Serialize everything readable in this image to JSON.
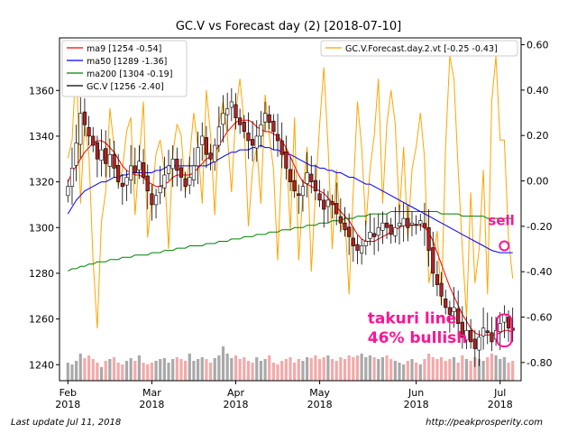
{
  "chart_data": {
    "type": "candlestick",
    "title": "GC.V vs Forecast day (2)  [2018-07-10]",
    "x_labels": [
      {
        "month": "Feb",
        "year": "2018",
        "day_index": 0
      },
      {
        "month": "Mar",
        "year": "2018",
        "day_index": 20
      },
      {
        "month": "Apr",
        "year": "2018",
        "day_index": 40
      },
      {
        "month": "May",
        "year": "2018",
        "day_index": 60
      },
      {
        "month": "Jun",
        "year": "2018",
        "day_index": 83
      },
      {
        "month": "Jul",
        "year": "2018",
        "day_index": 103
      }
    ],
    "x_range": [
      -2,
      108
    ],
    "left_axis": {
      "ylim": [
        1233,
        1383
      ],
      "ticks": [
        1240,
        1260,
        1280,
        1300,
        1320,
        1340,
        1360
      ]
    },
    "right_axis": {
      "ylim": [
        -0.88,
        0.63
      ],
      "ticks": [
        "0.60",
        "0.40",
        "0.20",
        "0.00",
        "-0.20",
        "-0.40",
        "-0.60",
        "-0.80"
      ]
    },
    "legend_left": [
      "ma9 [1254 -0.54]",
      "ma50 [1289 -1.36]",
      "ma200 [1304 -0.19]",
      "GC.V [1256 -2.40]"
    ],
    "legend_right": [
      "GC.V.Forecast.day.2.vt [-0.25 -0.43]"
    ],
    "colors": {
      "ma9": "#ff0000",
      "ma50": "#0000ff",
      "ma200": "#008000",
      "price": "#000000",
      "forecast": "#ffa500",
      "up": "#ffffff",
      "down": "#b22222",
      "vol_up": "#a9a9a9",
      "vol_down": "#f4a9a9",
      "annotation": "#ff1493"
    },
    "price_close": [
      1318,
      1326,
      1337,
      1350,
      1345,
      1340,
      1336,
      1330,
      1334,
      1328,
      1332,
      1326,
      1320,
      1318,
      1322,
      1327,
      1324,
      1329,
      1322,
      1316,
      1310,
      1314,
      1318,
      1323,
      1327,
      1330,
      1325,
      1322,
      1318,
      1322,
      1327,
      1335,
      1340,
      1332,
      1330,
      1336,
      1344,
      1350,
      1352,
      1355,
      1348,
      1345,
      1342,
      1338,
      1336,
      1340,
      1345,
      1350,
      1346,
      1342,
      1338,
      1332,
      1326,
      1320,
      1316,
      1314,
      1318,
      1324,
      1320,
      1316,
      1312,
      1308,
      1312,
      1310,
      1306,
      1302,
      1299,
      1296,
      1292,
      1290,
      1292,
      1294,
      1298,
      1296,
      1300,
      1302,
      1300,
      1297,
      1300,
      1302,
      1304,
      1300,
      1302,
      1301,
      1303,
      1300,
      1290,
      1280,
      1275,
      1270,
      1265,
      1262,
      1265,
      1258,
      1252,
      1255,
      1250,
      1247,
      1252,
      1256,
      1254,
      1250,
      1255,
      1258,
      1262,
      1256,
      1255
    ],
    "ma9": [
      1320,
      1324,
      1327,
      1330,
      1333,
      1335,
      1337,
      1338,
      1338,
      1337,
      1335,
      1333,
      1330,
      1327,
      1325,
      1324,
      1323,
      1323,
      1322,
      1320,
      1319,
      1318,
      1318,
      1319,
      1320,
      1322,
      1323,
      1323,
      1323,
      1323,
      1324,
      1326,
      1328,
      1330,
      1331,
      1333,
      1336,
      1339,
      1342,
      1344,
      1346,
      1347,
      1347,
      1347,
      1346,
      1344,
      1343,
      1342,
      1342,
      1341,
      1340,
      1338,
      1335,
      1331,
      1327,
      1323,
      1320,
      1319,
      1318,
      1317,
      1316,
      1315,
      1313,
      1311,
      1309,
      1307,
      1305,
      1303,
      1300,
      1297,
      1295,
      1294,
      1294,
      1294,
      1295,
      1296,
      1297,
      1298,
      1299,
      1300,
      1301,
      1301,
      1301,
      1301,
      1301,
      1300,
      1298,
      1294,
      1289,
      1284,
      1279,
      1274,
      1270,
      1266,
      1262,
      1259,
      1256,
      1254,
      1253,
      1253,
      1253,
      1253,
      1253,
      1254,
      1255,
      1255,
      1254
    ],
    "ma50": [
      1306,
      1309,
      1312,
      1314,
      1316,
      1317,
      1318,
      1319,
      1320,
      1320,
      1321,
      1322,
      1322,
      1323,
      1323,
      1324,
      1324,
      1324,
      1324,
      1324,
      1324,
      1325,
      1325,
      1326,
      1327,
      1327,
      1327,
      1327,
      1327,
      1327,
      1327,
      1327,
      1327,
      1327,
      1328,
      1329,
      1330,
      1331,
      1332,
      1333,
      1333,
      1334,
      1334,
      1334,
      1335,
      1335,
      1336,
      1335,
      1335,
      1334,
      1334,
      1333,
      1332,
      1332,
      1331,
      1330,
      1329,
      1328,
      1327,
      1327,
      1326,
      1326,
      1325,
      1325,
      1324,
      1324,
      1323,
      1322,
      1322,
      1321,
      1320,
      1319,
      1319,
      1318,
      1317,
      1316,
      1315,
      1314,
      1313,
      1312,
      1311,
      1310,
      1309,
      1308,
      1307,
      1306,
      1305,
      1304,
      1303,
      1302,
      1301,
      1300,
      1299,
      1298,
      1297,
      1296,
      1295,
      1294,
      1293,
      1292,
      1291,
      1290,
      1289.5,
      1289,
      1289,
      1289,
      1289
    ],
    "ma200": [
      1281,
      1282,
      1282,
      1283,
      1283,
      1284,
      1284,
      1285,
      1285,
      1285,
      1286,
      1286,
      1286,
      1287,
      1287,
      1287,
      1288,
      1288,
      1288,
      1288,
      1289,
      1289,
      1289,
      1290,
      1290,
      1290,
      1291,
      1291,
      1291,
      1292,
      1292,
      1292,
      1292,
      1293,
      1293,
      1293,
      1294,
      1294,
      1294,
      1295,
      1295,
      1295,
      1296,
      1296,
      1296,
      1297,
      1297,
      1297,
      1298,
      1298,
      1298,
      1299,
      1299,
      1299,
      1300,
      1300,
      1300,
      1301,
      1301,
      1301,
      1302,
      1302,
      1302,
      1303,
      1303,
      1303,
      1304,
      1304,
      1304,
      1305,
      1305,
      1305,
      1306,
      1306,
      1306,
      1306,
      1306,
      1307,
      1307,
      1307,
      1307,
      1307,
      1307,
      1307,
      1307,
      1307,
      1307,
      1307,
      1307,
      1306,
      1306,
      1306,
      1306,
      1306,
      1305,
      1305,
      1305,
      1305,
      1305,
      1305,
      1304,
      1304,
      1304,
      1304,
      1304,
      1304,
      1304
    ],
    "forecast": [
      0.1,
      0.18,
      0.55,
      -0.1,
      0.25,
      0.12,
      -0.35,
      -0.65,
      -0.18,
      -0.05,
      0.32,
      0.15,
      -0.02,
      0.05,
      0.22,
      0.28,
      -0.15,
      0.1,
      0.35,
      -0.25,
      -0.08,
      0.12,
      0.18,
      0.05,
      -0.3,
      0.12,
      0.25,
      0.2,
      -0.05,
      0.1,
      0.3,
      0.15,
      -0.1,
      0.4,
      0.2,
      -0.15,
      0.25,
      0.35,
      0.2,
      -0.05,
      0.3,
      0.45,
      0.25,
      -0.2,
      0.05,
      0.15,
      -0.1,
      0.38,
      0.2,
      0.05,
      -0.35,
      0.1,
      0.15,
      -0.22,
      0.28,
      -0.35,
      -0.05,
      0.15,
      -0.4,
      -0.05,
      0.25,
      0.5,
      0.15,
      -0.3,
      0.05,
      -0.22,
      -0.15,
      -0.5,
      -0.05,
      0.35,
      0.15,
      -0.2,
      0.05,
      0.2,
      0.45,
      -0.1,
      0.25,
      0.4,
      0.25,
      -0.15,
      0.15,
      -0.25,
      0.05,
      0.15,
      0.3,
      0.1,
      -0.45,
      -0.35,
      -0.22,
      -0.55,
      0.15,
      0.55,
      0.45,
      0.05,
      -0.3,
      -0.6,
      -0.05,
      -0.45,
      -0.3,
      0.05,
      -0.5,
      0.35,
      0.55,
      0.18,
      0.18,
      -0.25,
      -0.43
    ],
    "volume": [
      20,
      18,
      22,
      30,
      25,
      28,
      24,
      20,
      15,
      22,
      24,
      26,
      20,
      18,
      22,
      25,
      22,
      28,
      20,
      18,
      20,
      22,
      24,
      25,
      20,
      24,
      26,
      24,
      22,
      30,
      22,
      24,
      26,
      24,
      20,
      25,
      28,
      38,
      30,
      25,
      28,
      24,
      26,
      22,
      20,
      26,
      22,
      24,
      28,
      20,
      18,
      22,
      24,
      26,
      20,
      24,
      22,
      26,
      25,
      28,
      24,
      26,
      28,
      24,
      22,
      26,
      24,
      28,
      26,
      28,
      30,
      26,
      28,
      26,
      24,
      26,
      28,
      24,
      22,
      20,
      18,
      22,
      24,
      20,
      18,
      24,
      30,
      26,
      24,
      26,
      22,
      24,
      26,
      20,
      28,
      24,
      22,
      26,
      24,
      22,
      26,
      30,
      28,
      24,
      26,
      20,
      22
    ],
    "annotations": [
      {
        "text": "sell",
        "type": "text"
      },
      {
        "text": "takuri line",
        "type": "text"
      },
      {
        "text": "46% bullish",
        "type": "text"
      }
    ]
  },
  "footer": {
    "left": "Last update Jul 11, 2018",
    "right": "http://peakprosperity.com"
  }
}
